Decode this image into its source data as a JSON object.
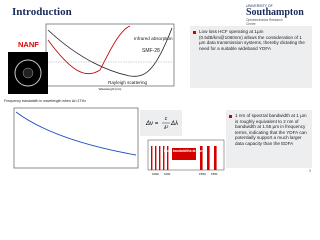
{
  "header": {
    "title": "Introduction",
    "logo": {
      "line1": "UNIVERSITY OF",
      "line2": "Southampton",
      "line3": "Optoelectronics Research Centre"
    }
  },
  "loss_figure": {
    "fiber_label": "NANF",
    "smf_label": "SMF-28",
    "infrared_label": "Infrared absorption",
    "rayleigh_label": "Rayleigh scattering",
    "x_label": "Wavelength (nm)"
  },
  "bullets": [
    "Low loss HCF operating at 1µm (0.5dB/km@1060nm) allows the consideration of 1 µm data transmission systems, thereby dictating the need for a suitable wideband YDFA",
    "1 nm of spectral bandwidth at 1 µm is roughly equivalent to 2 nm of bandwidth at 1.55 µm in frequency terms, indicating that the YDFA can potentially support a much larger data capacity than the EDFA"
  ],
  "bandwidth_figure": {
    "title": "Frequency bandwidth in wavelength when Δf=1THz"
  },
  "formula": {
    "lhs": "Δν =",
    "numerator": "c",
    "denominator": "λ²",
    "rhs": "Δλ"
  },
  "bar_figure": {
    "note": "More bandwidths at 1 µm",
    "labels": [
      "1060",
      "1061",
      "1550",
      "1551"
    ]
  },
  "page_number": "3"
}
